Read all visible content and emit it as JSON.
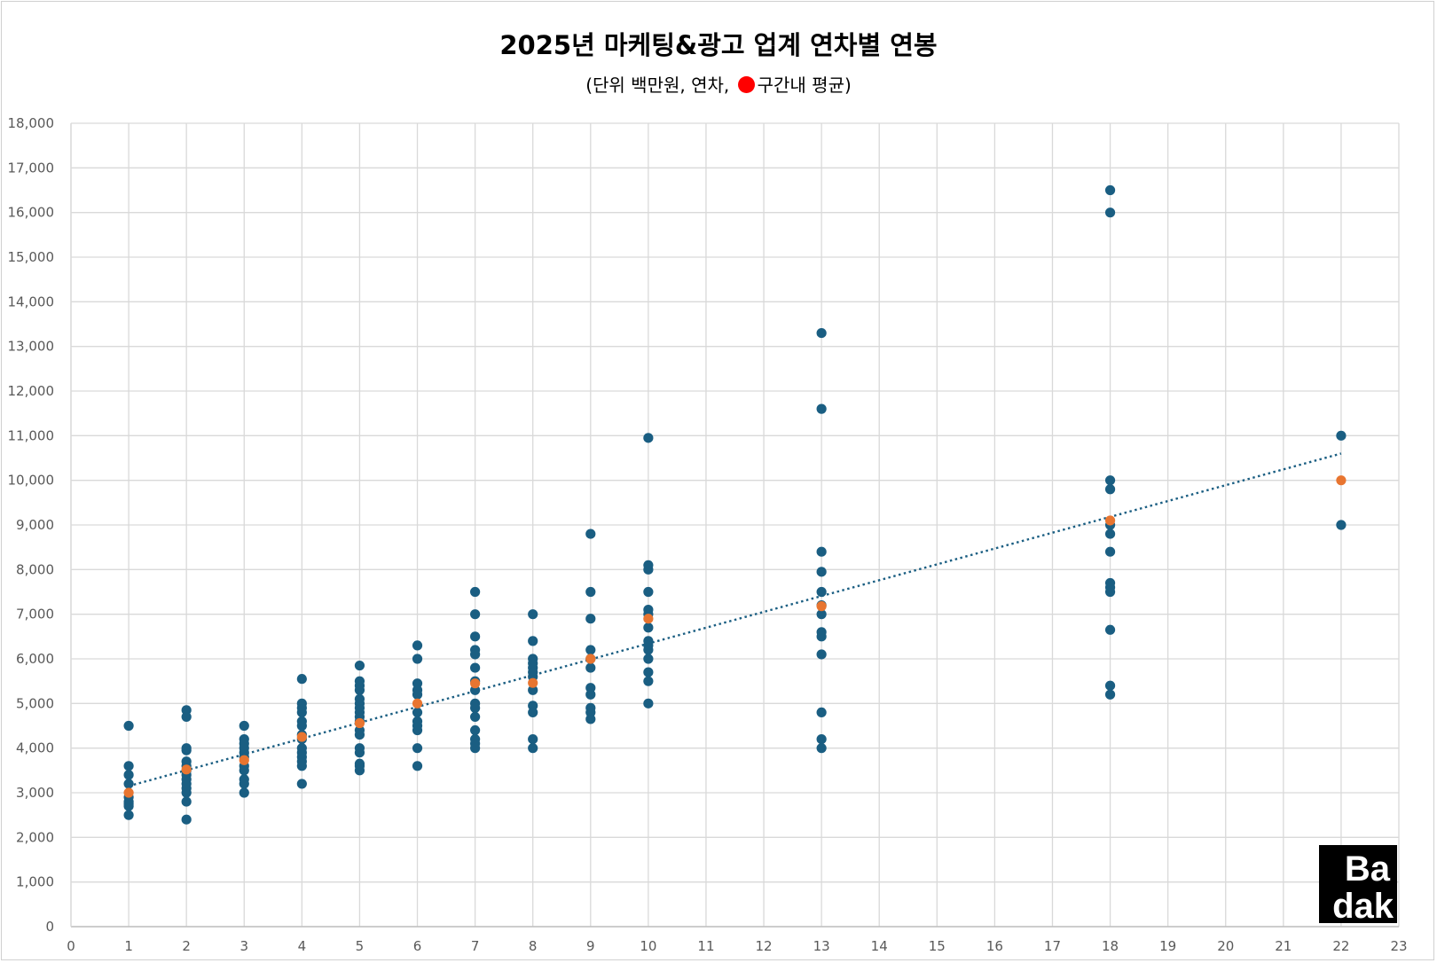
{
  "chart_data": {
    "type": "scatter",
    "title": "2025년 마케팅&광고 업계 연차별 연봉",
    "subtitle": {
      "prefix": "(단위 백만원, 연차,",
      "suffix": "구간내 평균)",
      "marker_color": "#ff0000"
    },
    "xlim": [
      0,
      23
    ],
    "ylim": [
      0,
      18000
    ],
    "x_ticks": [
      0,
      1,
      2,
      3,
      4,
      5,
      6,
      7,
      8,
      9,
      10,
      11,
      12,
      13,
      14,
      15,
      16,
      17,
      18,
      19,
      20,
      21,
      22,
      23
    ],
    "y_ticks": [
      "0",
      "1,000",
      "2,000",
      "3,000",
      "4,000",
      "5,000",
      "6,000",
      "7,000",
      "8,000",
      "9,000",
      "10,000",
      "11,000",
      "12,000",
      "13,000",
      "14,000",
      "15,000",
      "16,000",
      "17,000",
      "18,000"
    ],
    "grid": true,
    "series": [
      {
        "color": "#1a5e82",
        "points": [
          [
            1,
            4500
          ],
          [
            1,
            3600
          ],
          [
            1,
            3400
          ],
          [
            1,
            3200
          ],
          [
            1,
            2900
          ],
          [
            1,
            2800
          ],
          [
            1,
            2750
          ],
          [
            1,
            2700
          ],
          [
            1,
            2500
          ],
          [
            2,
            4850
          ],
          [
            2,
            4700
          ],
          [
            2,
            4000
          ],
          [
            2,
            3950
          ],
          [
            2,
            3700
          ],
          [
            2,
            3600
          ],
          [
            2,
            3500
          ],
          [
            2,
            3400
          ],
          [
            2,
            3300
          ],
          [
            2,
            3200
          ],
          [
            2,
            3100
          ],
          [
            2,
            3000
          ],
          [
            2,
            2800
          ],
          [
            2,
            2400
          ],
          [
            3,
            4500
          ],
          [
            3,
            4200
          ],
          [
            3,
            4100
          ],
          [
            3,
            4000
          ],
          [
            3,
            3900
          ],
          [
            3,
            3800
          ],
          [
            3,
            3600
          ],
          [
            3,
            3500
          ],
          [
            3,
            3300
          ],
          [
            3,
            3200
          ],
          [
            3,
            3000
          ],
          [
            4,
            5550
          ],
          [
            4,
            5000
          ],
          [
            4,
            4900
          ],
          [
            4,
            4800
          ],
          [
            4,
            4600
          ],
          [
            4,
            4500
          ],
          [
            4,
            4300
          ],
          [
            4,
            4200
          ],
          [
            4,
            4000
          ],
          [
            4,
            3900
          ],
          [
            4,
            3800
          ],
          [
            4,
            3700
          ],
          [
            4,
            3600
          ],
          [
            4,
            3200
          ],
          [
            5,
            5850
          ],
          [
            5,
            5500
          ],
          [
            5,
            5400
          ],
          [
            5,
            5300
          ],
          [
            5,
            5100
          ],
          [
            5,
            5000
          ],
          [
            5,
            4900
          ],
          [
            5,
            4800
          ],
          [
            5,
            4700
          ],
          [
            5,
            4600
          ],
          [
            5,
            4400
          ],
          [
            5,
            4300
          ],
          [
            5,
            4000
          ],
          [
            5,
            3900
          ],
          [
            5,
            3650
          ],
          [
            5,
            3600
          ],
          [
            5,
            3500
          ],
          [
            6,
            6300
          ],
          [
            6,
            6000
          ],
          [
            6,
            5450
          ],
          [
            6,
            5300
          ],
          [
            6,
            5200
          ],
          [
            6,
            4800
          ],
          [
            6,
            4600
          ],
          [
            6,
            4500
          ],
          [
            6,
            4400
          ],
          [
            6,
            4000
          ],
          [
            6,
            3600
          ],
          [
            7,
            7500
          ],
          [
            7,
            7000
          ],
          [
            7,
            6500
          ],
          [
            7,
            6200
          ],
          [
            7,
            6100
          ],
          [
            7,
            5800
          ],
          [
            7,
            5500
          ],
          [
            7,
            5300
          ],
          [
            7,
            5000
          ],
          [
            7,
            4900
          ],
          [
            7,
            4700
          ],
          [
            7,
            4400
          ],
          [
            7,
            4200
          ],
          [
            7,
            4100
          ],
          [
            7,
            4000
          ],
          [
            8,
            7000
          ],
          [
            8,
            6400
          ],
          [
            8,
            6000
          ],
          [
            8,
            5900
          ],
          [
            8,
            5800
          ],
          [
            8,
            5700
          ],
          [
            8,
            5600
          ],
          [
            8,
            5300
          ],
          [
            8,
            4950
          ],
          [
            8,
            4800
          ],
          [
            8,
            4200
          ],
          [
            8,
            4000
          ],
          [
            9,
            8800
          ],
          [
            9,
            7500
          ],
          [
            9,
            6900
          ],
          [
            9,
            6200
          ],
          [
            9,
            6000
          ],
          [
            9,
            5800
          ],
          [
            9,
            5350
          ],
          [
            9,
            5200
          ],
          [
            9,
            4900
          ],
          [
            9,
            4800
          ],
          [
            9,
            4650
          ],
          [
            10,
            10950
          ],
          [
            10,
            8100
          ],
          [
            10,
            8000
          ],
          [
            10,
            7500
          ],
          [
            10,
            7100
          ],
          [
            10,
            7000
          ],
          [
            10,
            6700
          ],
          [
            10,
            6400
          ],
          [
            10,
            6300
          ],
          [
            10,
            6200
          ],
          [
            10,
            6000
          ],
          [
            10,
            5700
          ],
          [
            10,
            5500
          ],
          [
            10,
            5000
          ],
          [
            13,
            13300
          ],
          [
            13,
            11600
          ],
          [
            13,
            8400
          ],
          [
            13,
            7950
          ],
          [
            13,
            7500
          ],
          [
            13,
            7200
          ],
          [
            13,
            7000
          ],
          [
            13,
            6600
          ],
          [
            13,
            6500
          ],
          [
            13,
            6100
          ],
          [
            13,
            4800
          ],
          [
            13,
            4200
          ],
          [
            13,
            4000
          ],
          [
            18,
            16500
          ],
          [
            18,
            16000
          ],
          [
            18,
            10000
          ],
          [
            18,
            9800
          ],
          [
            18,
            9000
          ],
          [
            18,
            8800
          ],
          [
            18,
            8400
          ],
          [
            18,
            7700
          ],
          [
            18,
            7600
          ],
          [
            18,
            7500
          ],
          [
            18,
            6650
          ],
          [
            18,
            5400
          ],
          [
            18,
            5200
          ],
          [
            22,
            11000
          ],
          [
            22,
            9000
          ]
        ]
      },
      {
        "color": "#e87530",
        "points": [
          [
            1,
            3000
          ],
          [
            2,
            3520
          ],
          [
            3,
            3730
          ],
          [
            4,
            4250
          ],
          [
            5,
            4560
          ],
          [
            6,
            5000
          ],
          [
            7,
            5450
          ],
          [
            8,
            5460
          ],
          [
            9,
            6000
          ],
          [
            10,
            6900
          ],
          [
            13,
            7180
          ],
          [
            18,
            9100
          ],
          [
            22,
            10000
          ]
        ]
      }
    ],
    "trendline": {
      "style": "dotted",
      "color": "#1a5e82",
      "from": [
        1,
        3150
      ],
      "to": [
        22,
        10600
      ]
    }
  },
  "logo": {
    "line1": "Ba",
    "line2": "dak"
  }
}
